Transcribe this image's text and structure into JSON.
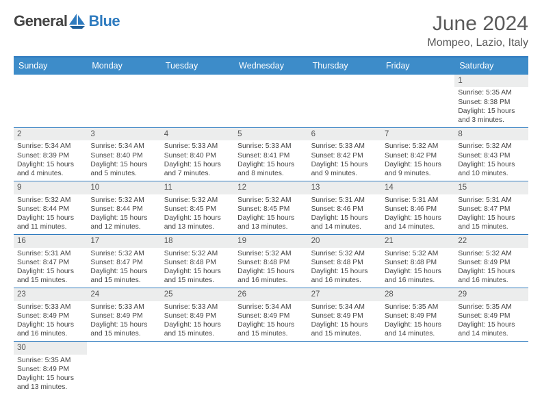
{
  "logo": {
    "text1": "General",
    "text2": "Blue"
  },
  "title": "June 2024",
  "location": "Mompeo, Lazio, Italy",
  "colors": {
    "header_bg": "#3d8cc9",
    "accent": "#2f7bbf",
    "daynum_bg": "#eceded",
    "text": "#444444",
    "title": "#5a5a5a",
    "bg": "#ffffff"
  },
  "days_of_week": [
    "Sunday",
    "Monday",
    "Tuesday",
    "Wednesday",
    "Thursday",
    "Friday",
    "Saturday"
  ],
  "grid": [
    [
      {
        "n": "",
        "blank": true,
        "sr": "",
        "ss": "",
        "dl": ""
      },
      {
        "n": "",
        "blank": true,
        "sr": "",
        "ss": "",
        "dl": ""
      },
      {
        "n": "",
        "blank": true,
        "sr": "",
        "ss": "",
        "dl": ""
      },
      {
        "n": "",
        "blank": true,
        "sr": "",
        "ss": "",
        "dl": ""
      },
      {
        "n": "",
        "blank": true,
        "sr": "",
        "ss": "",
        "dl": ""
      },
      {
        "n": "",
        "blank": true,
        "sr": "",
        "ss": "",
        "dl": ""
      },
      {
        "n": "1",
        "sr": "Sunrise: 5:35 AM",
        "ss": "Sunset: 8:38 PM",
        "dl": "Daylight: 15 hours and 3 minutes."
      }
    ],
    [
      {
        "n": "2",
        "sr": "Sunrise: 5:34 AM",
        "ss": "Sunset: 8:39 PM",
        "dl": "Daylight: 15 hours and 4 minutes."
      },
      {
        "n": "3",
        "sr": "Sunrise: 5:34 AM",
        "ss": "Sunset: 8:40 PM",
        "dl": "Daylight: 15 hours and 5 minutes."
      },
      {
        "n": "4",
        "sr": "Sunrise: 5:33 AM",
        "ss": "Sunset: 8:40 PM",
        "dl": "Daylight: 15 hours and 7 minutes."
      },
      {
        "n": "5",
        "sr": "Sunrise: 5:33 AM",
        "ss": "Sunset: 8:41 PM",
        "dl": "Daylight: 15 hours and 8 minutes."
      },
      {
        "n": "6",
        "sr": "Sunrise: 5:33 AM",
        "ss": "Sunset: 8:42 PM",
        "dl": "Daylight: 15 hours and 9 minutes."
      },
      {
        "n": "7",
        "sr": "Sunrise: 5:32 AM",
        "ss": "Sunset: 8:42 PM",
        "dl": "Daylight: 15 hours and 9 minutes."
      },
      {
        "n": "8",
        "sr": "Sunrise: 5:32 AM",
        "ss": "Sunset: 8:43 PM",
        "dl": "Daylight: 15 hours and 10 minutes."
      }
    ],
    [
      {
        "n": "9",
        "sr": "Sunrise: 5:32 AM",
        "ss": "Sunset: 8:44 PM",
        "dl": "Daylight: 15 hours and 11 minutes."
      },
      {
        "n": "10",
        "sr": "Sunrise: 5:32 AM",
        "ss": "Sunset: 8:44 PM",
        "dl": "Daylight: 15 hours and 12 minutes."
      },
      {
        "n": "11",
        "sr": "Sunrise: 5:32 AM",
        "ss": "Sunset: 8:45 PM",
        "dl": "Daylight: 15 hours and 13 minutes."
      },
      {
        "n": "12",
        "sr": "Sunrise: 5:32 AM",
        "ss": "Sunset: 8:45 PM",
        "dl": "Daylight: 15 hours and 13 minutes."
      },
      {
        "n": "13",
        "sr": "Sunrise: 5:31 AM",
        "ss": "Sunset: 8:46 PM",
        "dl": "Daylight: 15 hours and 14 minutes."
      },
      {
        "n": "14",
        "sr": "Sunrise: 5:31 AM",
        "ss": "Sunset: 8:46 PM",
        "dl": "Daylight: 15 hours and 14 minutes."
      },
      {
        "n": "15",
        "sr": "Sunrise: 5:31 AM",
        "ss": "Sunset: 8:47 PM",
        "dl": "Daylight: 15 hours and 15 minutes."
      }
    ],
    [
      {
        "n": "16",
        "sr": "Sunrise: 5:31 AM",
        "ss": "Sunset: 8:47 PM",
        "dl": "Daylight: 15 hours and 15 minutes."
      },
      {
        "n": "17",
        "sr": "Sunrise: 5:32 AM",
        "ss": "Sunset: 8:47 PM",
        "dl": "Daylight: 15 hours and 15 minutes."
      },
      {
        "n": "18",
        "sr": "Sunrise: 5:32 AM",
        "ss": "Sunset: 8:48 PM",
        "dl": "Daylight: 15 hours and 15 minutes."
      },
      {
        "n": "19",
        "sr": "Sunrise: 5:32 AM",
        "ss": "Sunset: 8:48 PM",
        "dl": "Daylight: 15 hours and 16 minutes."
      },
      {
        "n": "20",
        "sr": "Sunrise: 5:32 AM",
        "ss": "Sunset: 8:48 PM",
        "dl": "Daylight: 15 hours and 16 minutes."
      },
      {
        "n": "21",
        "sr": "Sunrise: 5:32 AM",
        "ss": "Sunset: 8:48 PM",
        "dl": "Daylight: 15 hours and 16 minutes."
      },
      {
        "n": "22",
        "sr": "Sunrise: 5:32 AM",
        "ss": "Sunset: 8:49 PM",
        "dl": "Daylight: 15 hours and 16 minutes."
      }
    ],
    [
      {
        "n": "23",
        "sr": "Sunrise: 5:33 AM",
        "ss": "Sunset: 8:49 PM",
        "dl": "Daylight: 15 hours and 16 minutes."
      },
      {
        "n": "24",
        "sr": "Sunrise: 5:33 AM",
        "ss": "Sunset: 8:49 PM",
        "dl": "Daylight: 15 hours and 15 minutes."
      },
      {
        "n": "25",
        "sr": "Sunrise: 5:33 AM",
        "ss": "Sunset: 8:49 PM",
        "dl": "Daylight: 15 hours and 15 minutes."
      },
      {
        "n": "26",
        "sr": "Sunrise: 5:34 AM",
        "ss": "Sunset: 8:49 PM",
        "dl": "Daylight: 15 hours and 15 minutes."
      },
      {
        "n": "27",
        "sr": "Sunrise: 5:34 AM",
        "ss": "Sunset: 8:49 PM",
        "dl": "Daylight: 15 hours and 15 minutes."
      },
      {
        "n": "28",
        "sr": "Sunrise: 5:35 AM",
        "ss": "Sunset: 8:49 PM",
        "dl": "Daylight: 15 hours and 14 minutes."
      },
      {
        "n": "29",
        "sr": "Sunrise: 5:35 AM",
        "ss": "Sunset: 8:49 PM",
        "dl": "Daylight: 15 hours and 14 minutes."
      }
    ],
    [
      {
        "n": "30",
        "sr": "Sunrise: 5:35 AM",
        "ss": "Sunset: 8:49 PM",
        "dl": "Daylight: 15 hours and 13 minutes."
      },
      {
        "n": "",
        "blank": true,
        "sr": "",
        "ss": "",
        "dl": ""
      },
      {
        "n": "",
        "blank": true,
        "sr": "",
        "ss": "",
        "dl": ""
      },
      {
        "n": "",
        "blank": true,
        "sr": "",
        "ss": "",
        "dl": ""
      },
      {
        "n": "",
        "blank": true,
        "sr": "",
        "ss": "",
        "dl": ""
      },
      {
        "n": "",
        "blank": true,
        "sr": "",
        "ss": "",
        "dl": ""
      },
      {
        "n": "",
        "blank": true,
        "sr": "",
        "ss": "",
        "dl": ""
      }
    ]
  ]
}
